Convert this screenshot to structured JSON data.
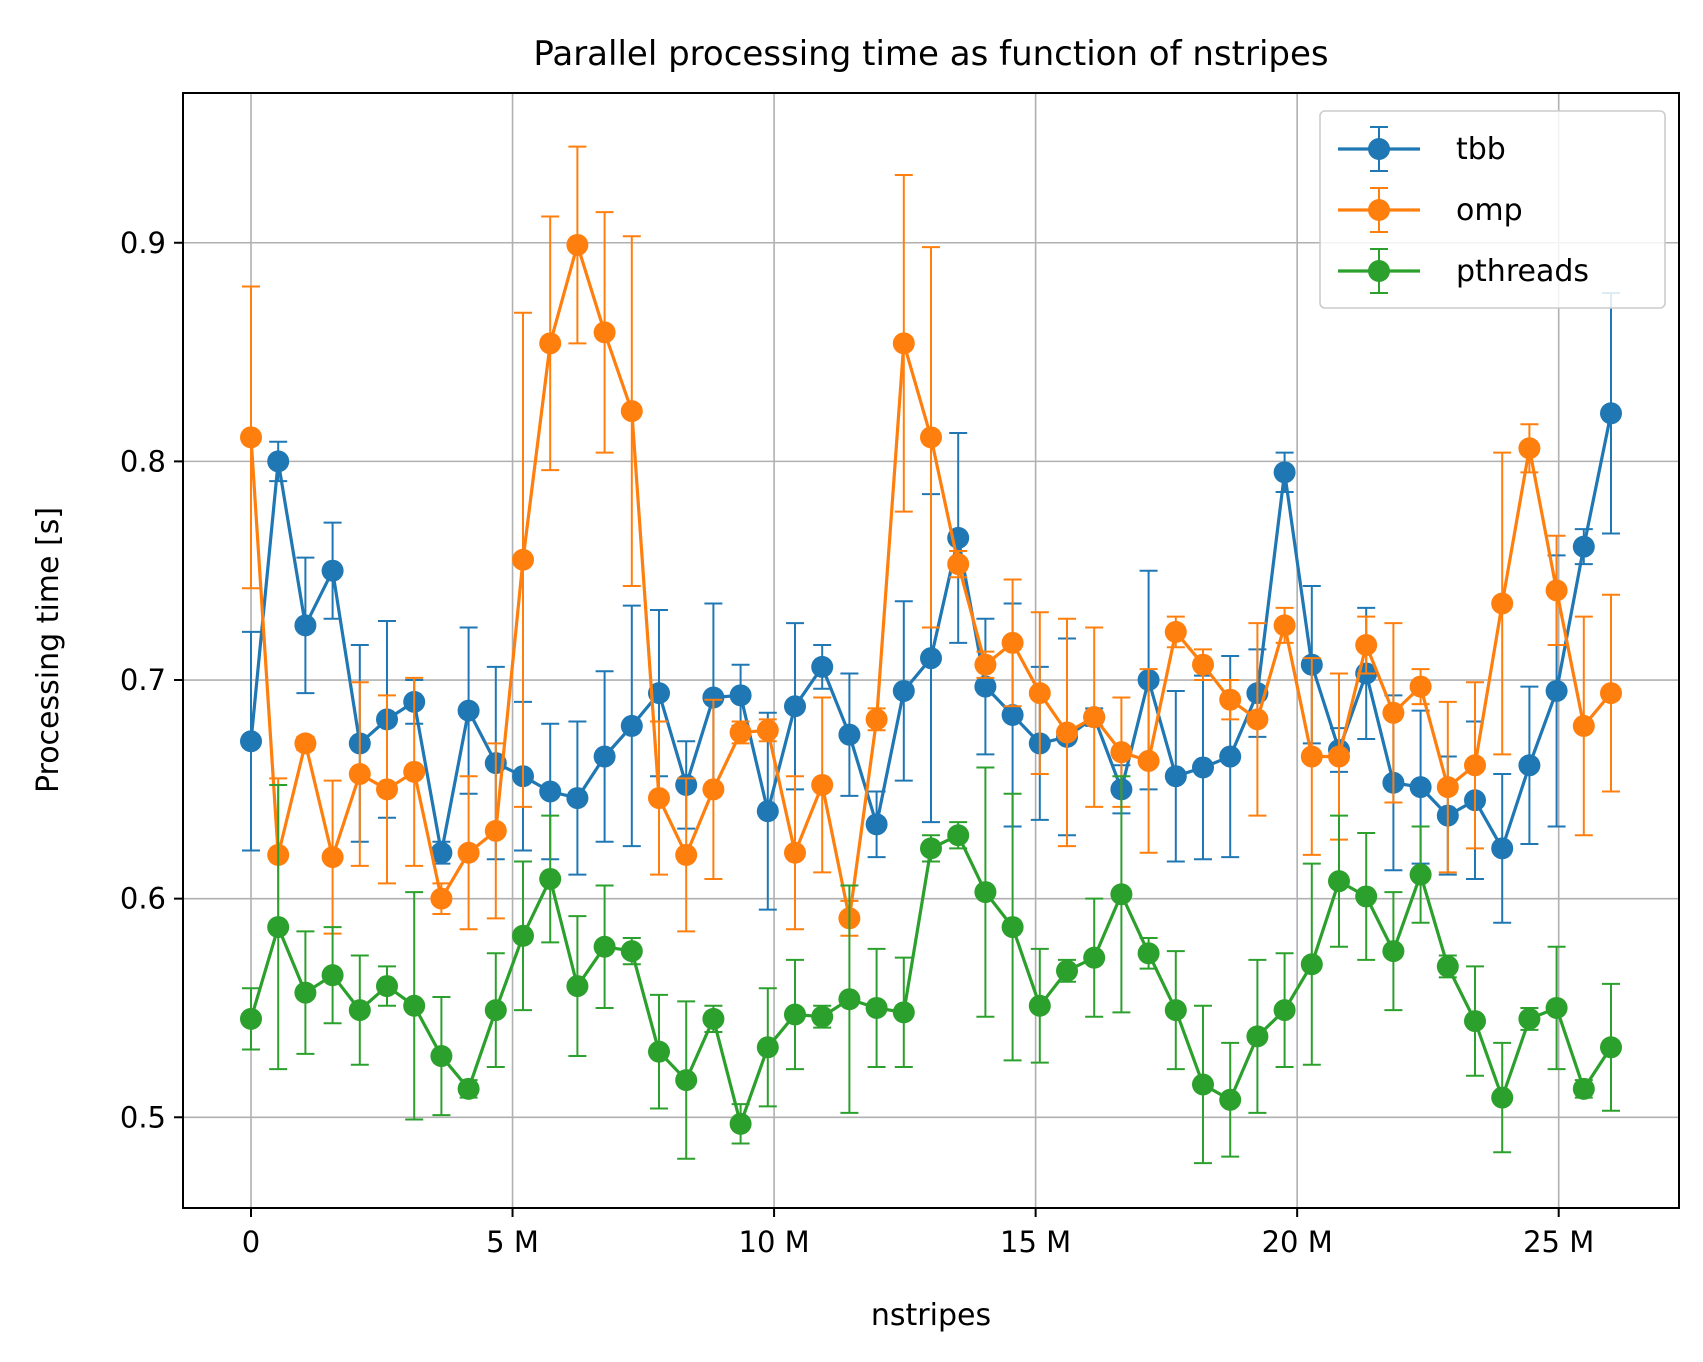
{
  "chart_data": {
    "type": "line",
    "title": "Parallel processing time as function of nstripes",
    "xlabel": "nstripes",
    "ylabel": "Processing time [s]",
    "xlim": [
      -1300000,
      27300000
    ],
    "ylim": [
      0.4585,
      0.9685
    ],
    "grid": true,
    "legend_position": "top-right",
    "x_ticks": [
      {
        "value": 0,
        "label": "0"
      },
      {
        "value": 5000000,
        "label": "5 M"
      },
      {
        "value": 10000000,
        "label": "10 M"
      },
      {
        "value": 15000000,
        "label": "15 M"
      },
      {
        "value": 20000000,
        "label": "20 M"
      },
      {
        "value": 25000000,
        "label": "25 M"
      }
    ],
    "y_ticks": [
      {
        "value": 0.5,
        "label": "0.5"
      },
      {
        "value": 0.6,
        "label": "0.6"
      },
      {
        "value": 0.7,
        "label": "0.7"
      },
      {
        "value": 0.8,
        "label": "0.8"
      },
      {
        "value": 0.9,
        "label": "0.9"
      }
    ],
    "x": [
      0,
      520000,
      1040000,
      1560000,
      2080000,
      2600000,
      3120000,
      3640000,
      4160000,
      4680000,
      5200000,
      5720000,
      6240000,
      6760000,
      7280000,
      7800000,
      8320000,
      8840000,
      9360000,
      9880000,
      10400000,
      10920000,
      11440000,
      11960000,
      12480000,
      13000000,
      13520000,
      14040000,
      14560000,
      15080000,
      15600000,
      16120000,
      16640000,
      17160000,
      17680000,
      18200000,
      18720000,
      19240000,
      19760000,
      20280000,
      20800000,
      21320000,
      21840000,
      22360000,
      22880000,
      23400000,
      23920000,
      24440000,
      24960000,
      25480000,
      26000000
    ],
    "series": [
      {
        "name": "tbb",
        "color": "#1f77b4",
        "values": [
          0.672,
          0.8,
          0.725,
          0.75,
          0.671,
          0.682,
          0.69,
          0.621,
          0.686,
          0.662,
          0.656,
          0.649,
          0.646,
          0.665,
          0.679,
          0.694,
          0.652,
          0.692,
          0.693,
          0.64,
          0.688,
          0.706,
          0.675,
          0.634,
          0.695,
          0.71,
          0.765,
          0.697,
          0.684,
          0.671,
          0.674,
          0.683,
          0.65,
          0.7,
          0.656,
          0.66,
          0.665,
          0.694,
          0.795,
          0.707,
          0.668,
          0.703,
          0.653,
          0.651,
          0.638,
          0.645,
          0.623,
          0.661,
          0.695,
          0.761,
          0.822
        ],
        "errors": [
          0.05,
          0.009,
          0.031,
          0.022,
          0.045,
          0.045,
          0.01,
          0.005,
          0.038,
          0.044,
          0.034,
          0.031,
          0.035,
          0.039,
          0.055,
          0.038,
          0.02,
          0.043,
          0.014,
          0.045,
          0.038,
          0.01,
          0.028,
          0.015,
          0.041,
          0.075,
          0.048,
          0.031,
          0.051,
          0.035,
          0.045,
          0.004,
          0.011,
          0.05,
          0.039,
          0.042,
          0.046,
          0.02,
          0.009,
          0.036,
          0.01,
          0.03,
          0.04,
          0.035,
          0.027,
          0.036,
          0.034,
          0.036,
          0.062,
          0.008,
          0.055
        ]
      },
      {
        "name": "omp",
        "color": "#ff7f0e",
        "values": [
          0.811,
          0.62,
          0.671,
          0.619,
          0.657,
          0.65,
          0.658,
          0.6,
          0.621,
          0.631,
          0.755,
          0.854,
          0.899,
          0.859,
          0.823,
          0.646,
          0.62,
          0.65,
          0.676,
          0.677,
          0.621,
          0.652,
          0.591,
          0.682,
          0.854,
          0.811,
          0.753,
          0.707,
          0.717,
          0.694,
          0.676,
          0.683,
          0.667,
          0.663,
          0.722,
          0.707,
          0.691,
          0.682,
          0.725,
          0.665,
          0.665,
          0.716,
          0.685,
          0.697,
          0.651,
          0.661,
          0.735,
          0.806,
          0.741,
          0.679,
          0.694
        ],
        "errors": [
          0.069,
          0.035,
          0.003,
          0.035,
          0.042,
          0.043,
          0.043,
          0.007,
          0.035,
          0.04,
          0.113,
          0.058,
          0.045,
          0.055,
          0.08,
          0.035,
          0.035,
          0.041,
          0.005,
          0.005,
          0.035,
          0.04,
          0.008,
          0.005,
          0.077,
          0.087,
          0.006,
          0.006,
          0.029,
          0.037,
          0.052,
          0.041,
          0.025,
          0.042,
          0.007,
          0.007,
          0.009,
          0.044,
          0.008,
          0.045,
          0.038,
          0.013,
          0.041,
          0.008,
          0.039,
          0.038,
          0.069,
          0.011,
          0.025,
          0.05,
          0.045
        ]
      },
      {
        "name": "pthreads",
        "color": "#2ca02c",
        "values": [
          0.545,
          0.587,
          0.557,
          0.565,
          0.549,
          0.56,
          0.551,
          0.528,
          0.513,
          0.549,
          0.583,
          0.609,
          0.56,
          0.578,
          0.576,
          0.53,
          0.517,
          0.545,
          0.497,
          0.532,
          0.547,
          0.546,
          0.554,
          0.55,
          0.548,
          0.623,
          0.629,
          0.603,
          0.587,
          0.551,
          0.567,
          0.573,
          0.602,
          0.575,
          0.549,
          0.515,
          0.508,
          0.537,
          0.549,
          0.57,
          0.608,
          0.601,
          0.576,
          0.611,
          0.569,
          0.544,
          0.509,
          0.545,
          0.55,
          0.513,
          0.532
        ],
        "errors": [
          0.014,
          0.065,
          0.028,
          0.022,
          0.025,
          0.009,
          0.052,
          0.027,
          0.004,
          0.026,
          0.034,
          0.029,
          0.032,
          0.028,
          0.006,
          0.026,
          0.036,
          0.006,
          0.009,
          0.027,
          0.025,
          0.005,
          0.052,
          0.027,
          0.025,
          0.006,
          0.006,
          0.057,
          0.061,
          0.026,
          0.005,
          0.027,
          0.054,
          0.007,
          0.027,
          0.036,
          0.026,
          0.035,
          0.026,
          0.046,
          0.03,
          0.029,
          0.027,
          0.022,
          0.005,
          0.025,
          0.025,
          0.005,
          0.028,
          0.004,
          0.029
        ]
      }
    ]
  }
}
